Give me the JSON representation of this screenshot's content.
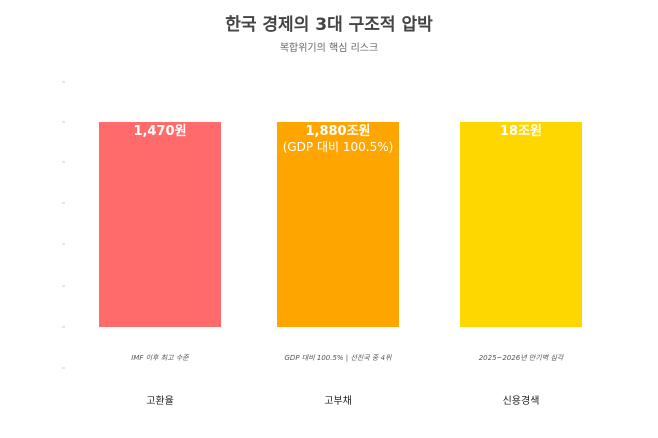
{
  "chart_data": {
    "type": "bar",
    "title": "한국 경제의 3대 구조적 압박",
    "subtitle": "복합위기의 핵심 리스크",
    "categories": [
      "고환율",
      "고부채",
      "신용경색"
    ],
    "values": [
      100,
      100,
      100
    ],
    "value_labels": [
      "1,470원",
      "1,880조원",
      "18조원"
    ],
    "value_sublabels": [
      "",
      "(GDP 대비 100.5%)",
      ""
    ],
    "notes": [
      "IMF 이후 최고 수준",
      "GDP 대비 100.5% | 선진국 중 4위",
      "2025~2026년 만기벽 심각"
    ],
    "colors": [
      "#ff6b6b",
      "#ffa500",
      "#ffd700"
    ],
    "ylim": [
      0,
      100
    ],
    "grid": false,
    "legend": "none"
  }
}
